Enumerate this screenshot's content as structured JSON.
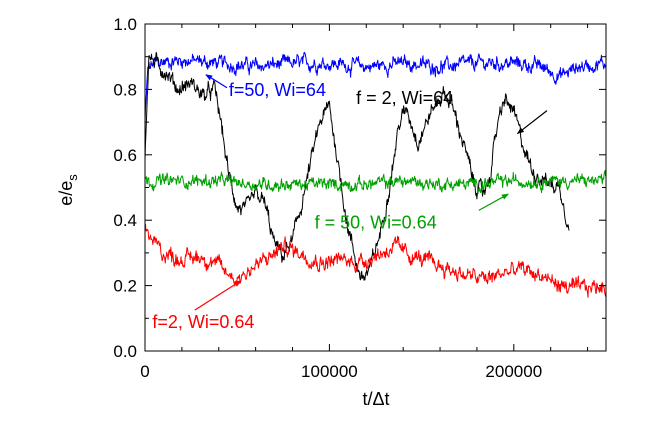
{
  "chart_data": {
    "type": "line",
    "title": "",
    "xlabel": "t/Δt",
    "ylabel": "e/e",
    "ylabel_sub": "s",
    "xlim": [
      0,
      250000
    ],
    "ylim": [
      0.0,
      1.0
    ],
    "x_ticks": [
      0,
      100000,
      200000
    ],
    "x_tick_labels": [
      "0",
      "100000",
      "200000"
    ],
    "y_ticks": [
      0.0,
      0.2,
      0.4,
      0.6,
      0.8,
      1.0
    ],
    "y_tick_labels": [
      "0.0",
      "0.2",
      "0.4",
      "0.6",
      "0.8",
      "1.0"
    ],
    "grid": false,
    "series": [
      {
        "name": "f=50, Wi=64",
        "color": "#0000ff",
        "noise": 0.018,
        "points": [
          [
            0,
            0.7
          ],
          [
            1500,
            0.86
          ],
          [
            5000,
            0.88
          ],
          [
            20000,
            0.89
          ],
          [
            40000,
            0.88
          ],
          [
            60000,
            0.87
          ],
          [
            80000,
            0.88
          ],
          [
            100000,
            0.88
          ],
          [
            120000,
            0.87
          ],
          [
            140000,
            0.88
          ],
          [
            160000,
            0.87
          ],
          [
            180000,
            0.88
          ],
          [
            200000,
            0.88
          ],
          [
            215000,
            0.87
          ],
          [
            225000,
            0.84
          ],
          [
            235000,
            0.87
          ],
          [
            250000,
            0.88
          ]
        ]
      },
      {
        "name": "f = 2, Wi=64",
        "color": "#000000",
        "noise": 0.02,
        "x_end": 230000,
        "points": [
          [
            0,
            0.6
          ],
          [
            2000,
            0.9
          ],
          [
            6000,
            0.88
          ],
          [
            12000,
            0.85
          ],
          [
            18000,
            0.8
          ],
          [
            25000,
            0.82
          ],
          [
            32000,
            0.78
          ],
          [
            38000,
            0.8
          ],
          [
            42000,
            0.67
          ],
          [
            45000,
            0.55
          ],
          [
            50000,
            0.44
          ],
          [
            55000,
            0.43
          ],
          [
            60000,
            0.48
          ],
          [
            65000,
            0.45
          ],
          [
            70000,
            0.33
          ],
          [
            75000,
            0.29
          ],
          [
            80000,
            0.34
          ],
          [
            85000,
            0.45
          ],
          [
            90000,
            0.58
          ],
          [
            95000,
            0.7
          ],
          [
            100000,
            0.75
          ],
          [
            104000,
            0.6
          ],
          [
            110000,
            0.38
          ],
          [
            115000,
            0.26
          ],
          [
            118000,
            0.22
          ],
          [
            122000,
            0.25
          ],
          [
            128000,
            0.37
          ],
          [
            133000,
            0.52
          ],
          [
            138000,
            0.7
          ],
          [
            142000,
            0.74
          ],
          [
            148000,
            0.64
          ],
          [
            155000,
            0.73
          ],
          [
            162000,
            0.79
          ],
          [
            166000,
            0.76
          ],
          [
            172000,
            0.65
          ],
          [
            178000,
            0.52
          ],
          [
            183000,
            0.48
          ],
          [
            187000,
            0.53
          ],
          [
            190000,
            0.66
          ],
          [
            195000,
            0.77
          ],
          [
            200000,
            0.73
          ],
          [
            205000,
            0.63
          ],
          [
            210000,
            0.55
          ],
          [
            215000,
            0.53
          ],
          [
            220000,
            0.51
          ],
          [
            225000,
            0.5
          ],
          [
            230000,
            0.38
          ]
        ]
      },
      {
        "name": "f = 50, Wi=0.64",
        "color": "#00a000",
        "noise": 0.016,
        "points": [
          [
            0,
            0.52
          ],
          [
            20000,
            0.52
          ],
          [
            40000,
            0.52
          ],
          [
            60000,
            0.51
          ],
          [
            80000,
            0.51
          ],
          [
            100000,
            0.51
          ],
          [
            120000,
            0.51
          ],
          [
            140000,
            0.52
          ],
          [
            160000,
            0.51
          ],
          [
            180000,
            0.51
          ],
          [
            200000,
            0.52
          ],
          [
            220000,
            0.52
          ],
          [
            250000,
            0.52
          ]
        ]
      },
      {
        "name": "f=2, Wi=0.64",
        "color": "#ff0000",
        "noise": 0.02,
        "points": [
          [
            0,
            0.38
          ],
          [
            4000,
            0.34
          ],
          [
            10000,
            0.3
          ],
          [
            20000,
            0.28
          ],
          [
            30000,
            0.29
          ],
          [
            38000,
            0.27
          ],
          [
            44000,
            0.24
          ],
          [
            50000,
            0.22
          ],
          [
            57000,
            0.25
          ],
          [
            66000,
            0.28
          ],
          [
            75000,
            0.32
          ],
          [
            85000,
            0.3
          ],
          [
            95000,
            0.27
          ],
          [
            105000,
            0.28
          ],
          [
            115000,
            0.27
          ],
          [
            125000,
            0.29
          ],
          [
            135000,
            0.32
          ],
          [
            145000,
            0.29
          ],
          [
            155000,
            0.27
          ],
          [
            165000,
            0.25
          ],
          [
            175000,
            0.23
          ],
          [
            185000,
            0.22
          ],
          [
            195000,
            0.24
          ],
          [
            205000,
            0.25
          ],
          [
            215000,
            0.23
          ],
          [
            225000,
            0.2
          ],
          [
            235000,
            0.19
          ],
          [
            250000,
            0.2
          ]
        ]
      }
    ],
    "annotations": [
      {
        "text": "f=50, Wi=64",
        "color": "#0000ff",
        "anchor": "start",
        "text_pos": [
          45500,
          0.78
        ],
        "arrow_from": [
          44500,
          0.805
        ],
        "arrow_to": [
          33000,
          0.845
        ]
      },
      {
        "text": "f = 2, Wi=64",
        "color": "#000000",
        "anchor": "start",
        "text_pos": [
          114500,
          0.755
        ],
        "arrow_from": [
          218000,
          0.735
        ],
        "arrow_to": [
          202000,
          0.665
        ]
      },
      {
        "text": "f = 50, Wi=0.64",
        "color": "#00a000",
        "anchor": "start",
        "text_pos": [
          92000,
          0.375
        ],
        "arrow_from": [
          181000,
          0.43
        ],
        "arrow_to": [
          197000,
          0.48
        ]
      },
      {
        "text": "f=2, Wi=0.64",
        "color": "#ff0000",
        "anchor": "start",
        "text_pos": [
          4000,
          0.07
        ],
        "arrow_from": [
          27000,
          0.125
        ],
        "arrow_to": [
          52000,
          0.215
        ]
      }
    ]
  }
}
